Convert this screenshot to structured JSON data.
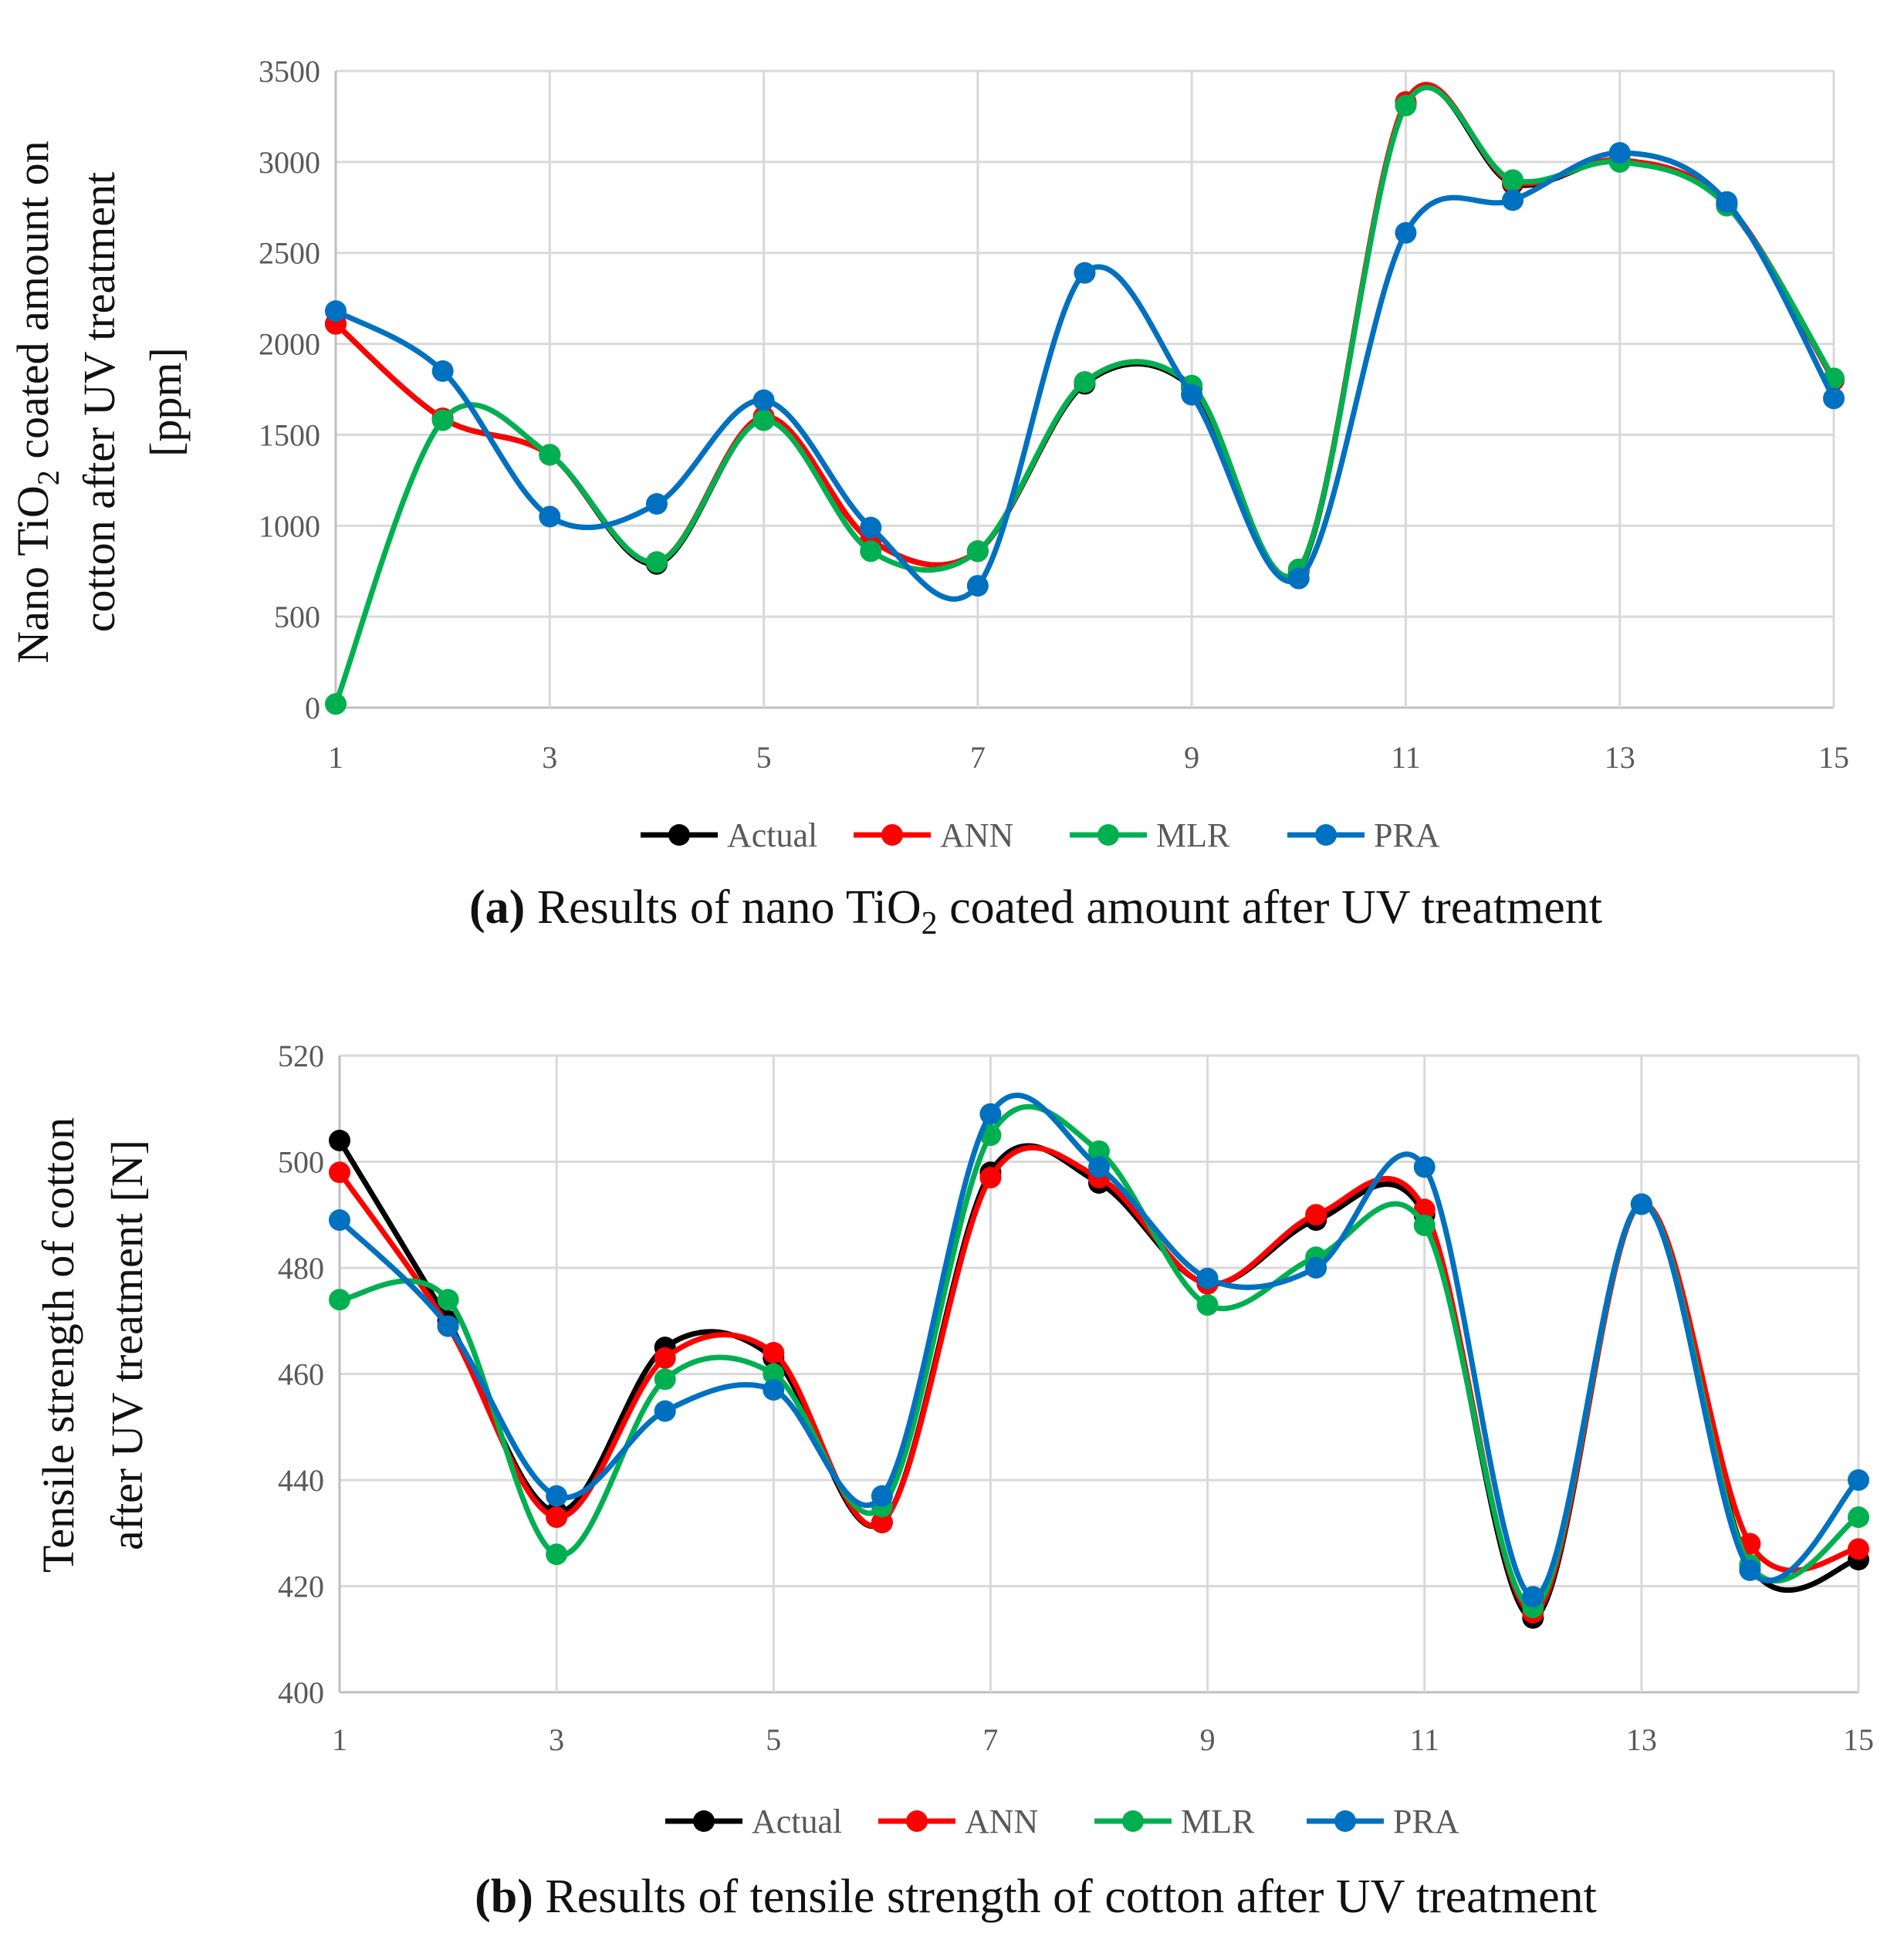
{
  "chart_data": [
    {
      "type": "line",
      "panel": "a",
      "caption_bold": "(a)",
      "caption_pre": " Results of nano TiO",
      "caption_sub": "2",
      "caption_post": " coated amount after UV treatment",
      "ylabel_line1_pre": "Nano TiO",
      "ylabel_line1_sub": "2",
      "ylabel_line1_post": " coated amount on",
      "ylabel_line2": "cotton after UV treatment",
      "ylabel_line3": "[ppm]",
      "ylim": [
        0,
        3500
      ],
      "yticks": [
        "0",
        "500",
        "1000",
        "1500",
        "2000",
        "2500",
        "3000",
        "3500"
      ],
      "xlim": [
        1,
        15
      ],
      "xtick_labels": [
        "1",
        "3",
        "5",
        "7",
        "9",
        "11",
        "13",
        "15"
      ],
      "x": [
        1,
        2,
        3,
        4,
        5,
        6,
        7,
        8,
        9,
        10,
        11,
        12,
        13,
        14,
        15
      ],
      "series": [
        {
          "name": "Actual",
          "color": "#000000",
          "values": [
            2110,
            1590,
            1390,
            790,
            1590,
            920,
            860,
            1780,
            1760,
            750,
            3320,
            2880,
            3010,
            2760,
            1800
          ]
        },
        {
          "name": "ANN",
          "color": "#ff0000",
          "values": [
            2110,
            1590,
            1390,
            800,
            1600,
            920,
            860,
            1790,
            1770,
            760,
            3330,
            2890,
            3010,
            2770,
            1800
          ]
        },
        {
          "name": "MLR",
          "color": "#00b050",
          "values": [
            20,
            1580,
            1390,
            800,
            1580,
            860,
            860,
            1790,
            1770,
            760,
            3310,
            2900,
            3000,
            2760,
            1810
          ]
        },
        {
          "name": "PRA",
          "color": "#0070c0",
          "values": [
            2180,
            1850,
            1050,
            1120,
            1690,
            990,
            670,
            2390,
            1720,
            710,
            2610,
            2790,
            3050,
            2780,
            1700
          ]
        }
      ]
    },
    {
      "type": "line",
      "panel": "b",
      "caption_bold": "(b)",
      "caption_text": " Results of tensile strength of cotton after UV treatment",
      "ylabel_line1": "Tensile strength of cotton",
      "ylabel_line2": "after UV treatment [N]",
      "ylim": [
        400,
        520
      ],
      "yticks": [
        "400",
        "420",
        "440",
        "460",
        "480",
        "500",
        "520"
      ],
      "xlim": [
        1,
        15
      ],
      "xtick_labels": [
        "1",
        "3",
        "5",
        "7",
        "9",
        "11",
        "13",
        "15"
      ],
      "x": [
        1,
        2,
        3,
        4,
        5,
        6,
        7,
        8,
        9,
        10,
        11,
        12,
        13,
        14,
        15
      ],
      "series": [
        {
          "name": "Actual",
          "color": "#000000",
          "values": [
            504,
            470,
            434,
            465,
            463,
            432,
            498,
            496,
            477,
            489,
            490,
            414,
            492,
            424,
            425
          ]
        },
        {
          "name": "ANN",
          "color": "#ff0000",
          "values": [
            498,
            469,
            433,
            463,
            464,
            432,
            497,
            497,
            477,
            490,
            491,
            415,
            492,
            428,
            427
          ]
        },
        {
          "name": "MLR",
          "color": "#00b050",
          "values": [
            474,
            474,
            426,
            459,
            460,
            435,
            505,
            502,
            473,
            482,
            488,
            416,
            492,
            424,
            433
          ]
        },
        {
          "name": "PRA",
          "color": "#0070c0",
          "values": [
            489,
            469,
            437,
            453,
            457,
            437,
            509,
            499,
            478,
            480,
            499,
            418,
            492,
            423,
            440
          ]
        }
      ]
    }
  ]
}
